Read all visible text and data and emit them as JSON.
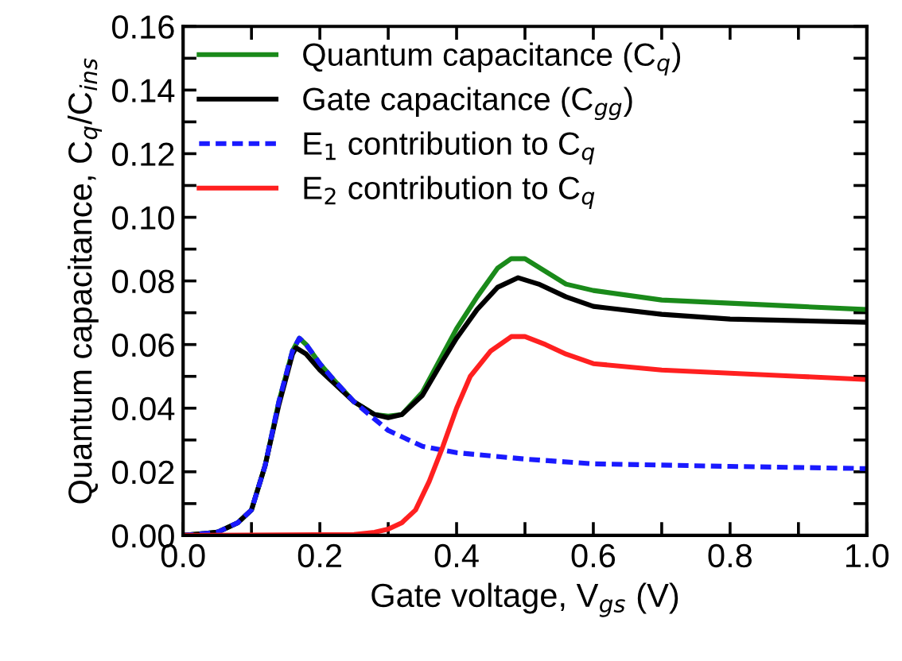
{
  "chart_data": {
    "type": "line",
    "xlabel": "Gate voltage, V$_{gs}$ (V)",
    "ylabel": "Quantum capacitance, C$_{q}$/C$_{ins}$",
    "xlim": [
      0.0,
      1.0
    ],
    "ylim": [
      0.0,
      0.16
    ],
    "xticks": [
      {
        "value": 0.0,
        "label": "0.0"
      },
      {
        "value": 0.1,
        "label": null
      },
      {
        "value": 0.2,
        "label": "0.2"
      },
      {
        "value": 0.3,
        "label": null
      },
      {
        "value": 0.4,
        "label": "0.4"
      },
      {
        "value": 0.5,
        "label": null
      },
      {
        "value": 0.6,
        "label": "0.6"
      },
      {
        "value": 0.7,
        "label": null
      },
      {
        "value": 0.8,
        "label": "0.8"
      },
      {
        "value": 0.9,
        "label": null
      },
      {
        "value": 1.0,
        "label": "1.0"
      }
    ],
    "yticks": [
      {
        "value": 0.0,
        "label": "0.00"
      },
      {
        "value": 0.01,
        "label": null
      },
      {
        "value": 0.02,
        "label": "0.02"
      },
      {
        "value": 0.03,
        "label": null
      },
      {
        "value": 0.04,
        "label": "0.04"
      },
      {
        "value": 0.05,
        "label": null
      },
      {
        "value": 0.06,
        "label": "0.06"
      },
      {
        "value": 0.07,
        "label": null
      },
      {
        "value": 0.08,
        "label": "0.08"
      },
      {
        "value": 0.09,
        "label": null
      },
      {
        "value": 0.1,
        "label": "0.10"
      },
      {
        "value": 0.11,
        "label": null
      },
      {
        "value": 0.12,
        "label": "0.12"
      },
      {
        "value": 0.13,
        "label": null
      },
      {
        "value": 0.14,
        "label": "0.14"
      },
      {
        "value": 0.15,
        "label": null
      },
      {
        "value": 0.16,
        "label": "0.16"
      }
    ],
    "grid": false,
    "legend": "top left",
    "marker": "none",
    "series": [
      {
        "name": "Quantum capacitance (C$_{q}$)",
        "color": "#1a8a1a",
        "line_style": "solid",
        "x": [
          0.0,
          0.05,
          0.08,
          0.1,
          0.12,
          0.14,
          0.16,
          0.17,
          0.18,
          0.2,
          0.22,
          0.25,
          0.28,
          0.3,
          0.32,
          0.35,
          0.38,
          0.4,
          0.43,
          0.46,
          0.48,
          0.5,
          0.53,
          0.56,
          0.6,
          0.7,
          0.8,
          0.9,
          1.0
        ],
        "values": [
          0.0,
          0.001,
          0.004,
          0.008,
          0.022,
          0.042,
          0.058,
          0.062,
          0.06,
          0.054,
          0.049,
          0.042,
          0.038,
          0.0375,
          0.038,
          0.045,
          0.057,
          0.065,
          0.075,
          0.084,
          0.087,
          0.087,
          0.083,
          0.079,
          0.077,
          0.074,
          0.073,
          0.072,
          0.071
        ]
      },
      {
        "name": "Gate capacitance (C$_{gg}$)",
        "color": "#000000",
        "line_style": "solid",
        "x": [
          0.0,
          0.05,
          0.08,
          0.1,
          0.12,
          0.14,
          0.16,
          0.165,
          0.18,
          0.2,
          0.25,
          0.28,
          0.3,
          0.32,
          0.35,
          0.38,
          0.4,
          0.43,
          0.46,
          0.49,
          0.52,
          0.56,
          0.6,
          0.7,
          0.8,
          0.9,
          1.0
        ],
        "values": [
          0.0,
          0.001,
          0.004,
          0.008,
          0.022,
          0.041,
          0.057,
          0.059,
          0.057,
          0.052,
          0.042,
          0.038,
          0.037,
          0.038,
          0.044,
          0.055,
          0.062,
          0.071,
          0.078,
          0.081,
          0.079,
          0.075,
          0.072,
          0.0695,
          0.068,
          0.0675,
          0.067
        ]
      },
      {
        "name": "E$_{1}$ contribution to C$_{q}$",
        "color": "#1a1aff",
        "line_style": "dashed",
        "x": [
          0.0,
          0.05,
          0.08,
          0.1,
          0.12,
          0.14,
          0.16,
          0.17,
          0.18,
          0.2,
          0.22,
          0.25,
          0.3,
          0.35,
          0.4,
          0.5,
          0.6,
          0.8,
          1.0
        ],
        "values": [
          0.0,
          0.001,
          0.004,
          0.008,
          0.022,
          0.042,
          0.058,
          0.062,
          0.06,
          0.054,
          0.049,
          0.042,
          0.033,
          0.028,
          0.026,
          0.024,
          0.0225,
          0.0217,
          0.021
        ]
      },
      {
        "name": "E$_{2}$ contribution to C$_{q}$",
        "color": "#ff2020",
        "line_style": "solid",
        "x": [
          0.0,
          0.25,
          0.28,
          0.3,
          0.32,
          0.34,
          0.36,
          0.38,
          0.4,
          0.42,
          0.45,
          0.48,
          0.5,
          0.53,
          0.56,
          0.6,
          0.7,
          0.8,
          0.9,
          1.0
        ],
        "values": [
          0.0,
          0.0003,
          0.001,
          0.002,
          0.004,
          0.008,
          0.017,
          0.028,
          0.04,
          0.05,
          0.058,
          0.0625,
          0.0625,
          0.06,
          0.057,
          0.054,
          0.052,
          0.051,
          0.05,
          0.049
        ]
      }
    ]
  }
}
